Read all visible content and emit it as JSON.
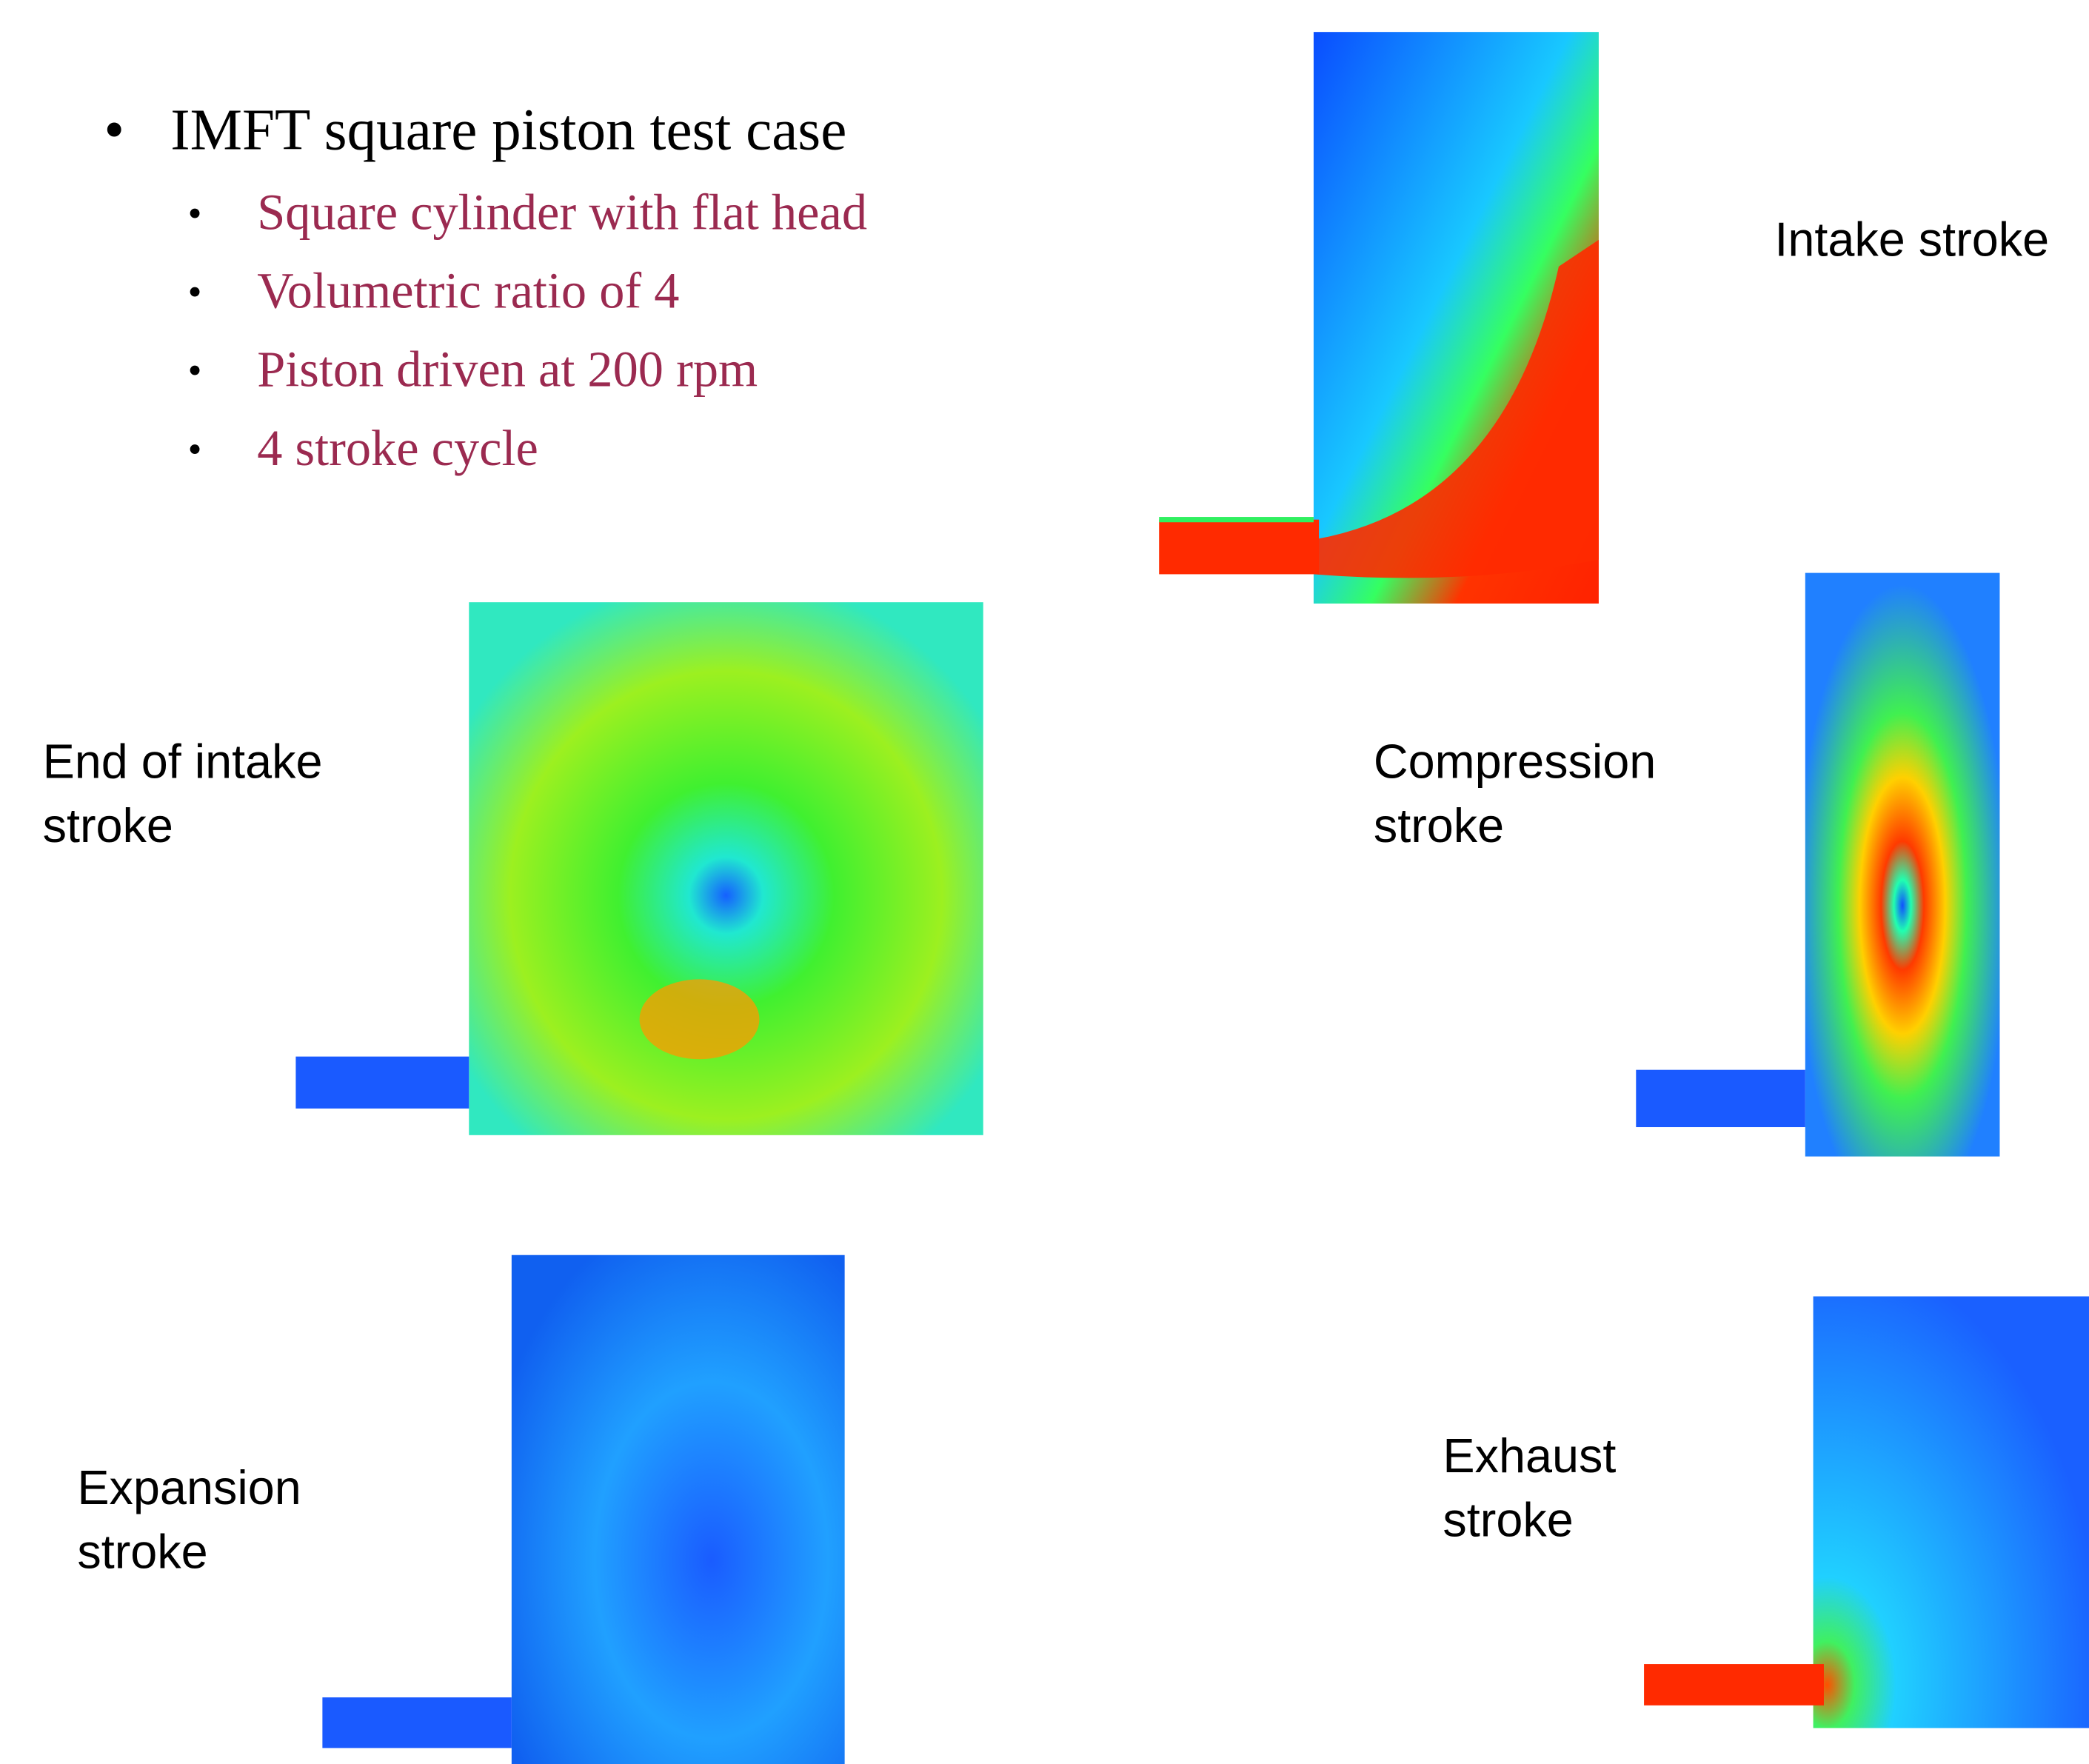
{
  "bullets": {
    "main": "IMFT square piston test case",
    "sub": [
      "Square cylinder with flat head",
      "Volumetric ratio of 4",
      "Piston driven at 200 rpm",
      "4 stroke cycle"
    ]
  },
  "panels": [
    {
      "lines": [
        "Intake stroke"
      ]
    },
    {
      "lines": [
        "End of intake",
        "stroke"
      ]
    },
    {
      "lines": [
        "Compression",
        "stroke"
      ]
    },
    {
      "lines": [
        "Expansion",
        "stroke"
      ]
    },
    {
      "lines": [
        "Exhaust",
        "stroke"
      ]
    }
  ]
}
